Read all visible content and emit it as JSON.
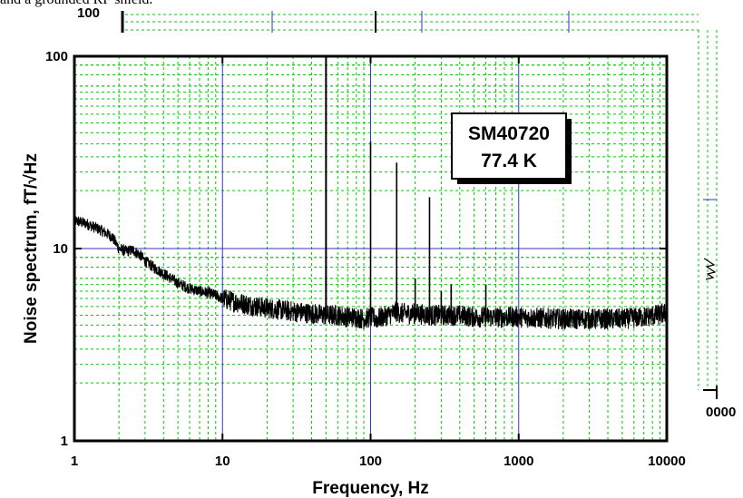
{
  "header": {
    "text": "and a grounded RF shield."
  },
  "chart_data": {
    "type": "line",
    "title": "",
    "xlabel": "Frequency, Hz",
    "ylabel": "Noise spectrum, fT/√Hz",
    "x_scale": "log",
    "y_scale": "log",
    "xlim": [
      1,
      10000
    ],
    "ylim": [
      1,
      100
    ],
    "x_ticks": [
      "1",
      "10",
      "100",
      "1000",
      "10000"
    ],
    "y_ticks": [
      "1",
      "10",
      "100"
    ],
    "grid": true,
    "annotation": [
      "SM40720",
      "77.4 K"
    ],
    "series": [
      {
        "x": [
          1,
          1.2,
          1.5,
          1.8,
          2,
          2.2,
          2.5,
          2.8,
          3,
          3.5,
          4,
          4.5,
          5,
          6,
          7,
          8,
          9,
          10,
          12,
          15,
          20,
          30,
          40,
          50,
          60,
          70,
          80,
          90,
          100,
          110,
          120,
          140,
          150,
          160,
          200,
          250,
          300,
          400,
          500,
          600,
          700,
          800,
          1000,
          2000,
          3000,
          5000,
          7000,
          10000
        ],
        "y": [
          14,
          13.5,
          12.5,
          11.5,
          10,
          9.7,
          9.8,
          9.2,
          8.6,
          7.9,
          7.4,
          7.0,
          6.6,
          6.2,
          6.0,
          5.9,
          5.7,
          5.5,
          5.3,
          5.1,
          4.9,
          4.7,
          4.6,
          4.5,
          4.5,
          4.4,
          4.4,
          4.3,
          4.4,
          4.3,
          4.4,
          4.6,
          4.7,
          4.6,
          4.6,
          4.5,
          4.5,
          4.5,
          4.4,
          4.4,
          4.4,
          4.4,
          4.4,
          4.3,
          4.3,
          4.3,
          4.4,
          4.6
        ]
      }
    ],
    "peaks": [
      {
        "x": 50,
        "y": 100
      },
      {
        "x": 100,
        "y": 36
      },
      {
        "x": 150,
        "y": 28
      },
      {
        "x": 200,
        "y": 7
      },
      {
        "x": 250,
        "y": 18.5
      },
      {
        "x": 300,
        "y": 6
      },
      {
        "x": 350,
        "y": 6.5
      },
      {
        "x": 600,
        "y": 6.5
      }
    ]
  },
  "colors": {
    "minor_grid": "#00cc00",
    "major_grid": "#3333cc",
    "trace": "#000000",
    "background": "#ffffff"
  }
}
